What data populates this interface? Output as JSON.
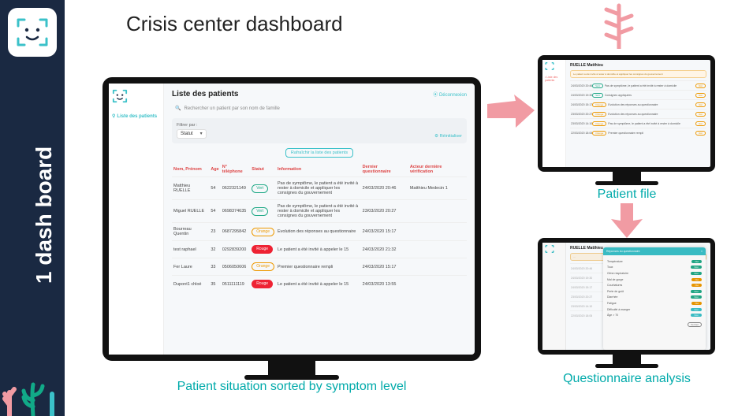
{
  "sidebar": {
    "label": "1 dash board"
  },
  "title": "Crisis center dashboard",
  "colors": {
    "sidebar_bg": "#1a2942",
    "accent": "#3bc1c9",
    "header_red": "#d44444",
    "pink_arrow": "#f19ba3"
  },
  "captions": {
    "main": "Patient situation sorted by symptom level",
    "topright": "Patient file",
    "bottomright": "Questionnaire analysis"
  },
  "app": {
    "nav_item": "Liste des patients",
    "title": "Liste des patients",
    "logout": "Déconnexion",
    "search_placeholder": "Rechercher un patient par son nom de famille",
    "filter_label": "Filtrer par :",
    "filter_value": "Statut",
    "reset": "Réinitialiser",
    "refresh": "Rafraîchir la liste des patients",
    "columns": [
      "Nom, Prénom",
      "Age",
      "N° téléphone",
      "Statut",
      "Information",
      "Dernier questionnaire",
      "Acteur dernière vérification"
    ],
    "rows": [
      {
        "name": "Matthieu RUELLE",
        "age": "54",
        "phone": "0622321149",
        "status": "Vert",
        "status_class": "pill-vert",
        "info": "Pas de symptôme, le patient a été invité à rester à domicile et appliquer les consignes du gouvernement",
        "last": "24/03/2020 20:46",
        "actor": "Matthieu Medecin 1"
      },
      {
        "name": "Miguel RUELLE",
        "age": "54",
        "phone": "0698374635",
        "status": "Vert",
        "status_class": "pill-vert",
        "info": "Pas de symptôme, le patient a été invité à rester à domicile et appliquer les consignes du gouvernement",
        "last": "23/03/2020 20:27",
        "actor": ""
      },
      {
        "name": "Bourreau Quentin",
        "age": "23",
        "phone": "0687295842",
        "status": "Orange",
        "status_class": "pill-orange",
        "info": "Evolution des réponses au questionnaire",
        "last": "24/03/2020 15:17",
        "actor": ""
      },
      {
        "name": "test raphael",
        "age": "32",
        "phone": "0292839200",
        "status": "Rouge",
        "status_class": "pill-rouge",
        "info": "Le patient a été invité à appeler le 15",
        "last": "24/03/2020 21:32",
        "actor": ""
      },
      {
        "name": "Fer Laure",
        "age": "33",
        "phone": "0506050606",
        "status": "Orange",
        "status_class": "pill-orange",
        "info": "Premier questionnaire rempli",
        "last": "24/03/2020 15:17",
        "actor": ""
      },
      {
        "name": "Dupont1 chloé",
        "age": "35",
        "phone": "0511111119",
        "status": "Rouge",
        "status_class": "pill-rouge",
        "info": "Le patient a été invité à appeler le 15",
        "last": "24/03/2020 13:55",
        "actor": ""
      }
    ]
  },
  "patient_file": {
    "name": "RUELLE Matthieu",
    "banner": "Le patient a été invité à rester à domicile et appliquer les consignes du gouvernement",
    "action_btn": "Voir",
    "rows": [
      {
        "date": "24/03/2020 20:46",
        "status": "Vert",
        "cls": "mp-vert",
        "note": "Pas de symptôme, le patient a été invité à rester à domicile"
      },
      {
        "date": "24/03/2020 19:30",
        "status": "Vert",
        "cls": "mp-vert",
        "note": "Consignes appliquées"
      },
      {
        "date": "24/03/2020 15:17",
        "status": "Orange",
        "cls": "mp-or",
        "note": "Evolution des réponses au questionnaire"
      },
      {
        "date": "23/03/2020 20:27",
        "status": "Orange",
        "cls": "mp-or",
        "note": "Evolution des réponses au questionnaire"
      },
      {
        "date": "23/03/2020 14:10",
        "status": "Orange",
        "cls": "mp-or",
        "note": "Pas de symptôme, le patient a été invité à rester à domicile"
      },
      {
        "date": "22/03/2020 18:05",
        "status": "Orange",
        "cls": "mp-or",
        "note": "Premier questionnaire rempli"
      }
    ]
  },
  "questionnaire": {
    "modal_title": "Réponses du questionnaire",
    "close": "×",
    "items": [
      {
        "q": "Température",
        "a": "Oui",
        "cls": "qp-g"
      },
      {
        "q": "Toux",
        "a": "Non",
        "cls": "qp-g"
      },
      {
        "q": "Gêne respiratoire",
        "a": "Non",
        "cls": "qp-g"
      },
      {
        "q": "Mal de gorge",
        "a": "Oui",
        "cls": "qp-o"
      },
      {
        "q": "Courbatures",
        "a": "Oui",
        "cls": "qp-o"
      },
      {
        "q": "Perte de goût",
        "a": "Non",
        "cls": "qp-g"
      },
      {
        "q": "Diarrhée",
        "a": "Non",
        "cls": "qp-g"
      },
      {
        "q": "Fatigue",
        "a": "Oui",
        "cls": "qp-o"
      },
      {
        "q": "Difficulté à manger",
        "a": "Non",
        "cls": "qp-b"
      },
      {
        "q": "Âge > 70",
        "a": "Non",
        "cls": "qp-b"
      }
    ],
    "footer_btn": "Fermer"
  }
}
